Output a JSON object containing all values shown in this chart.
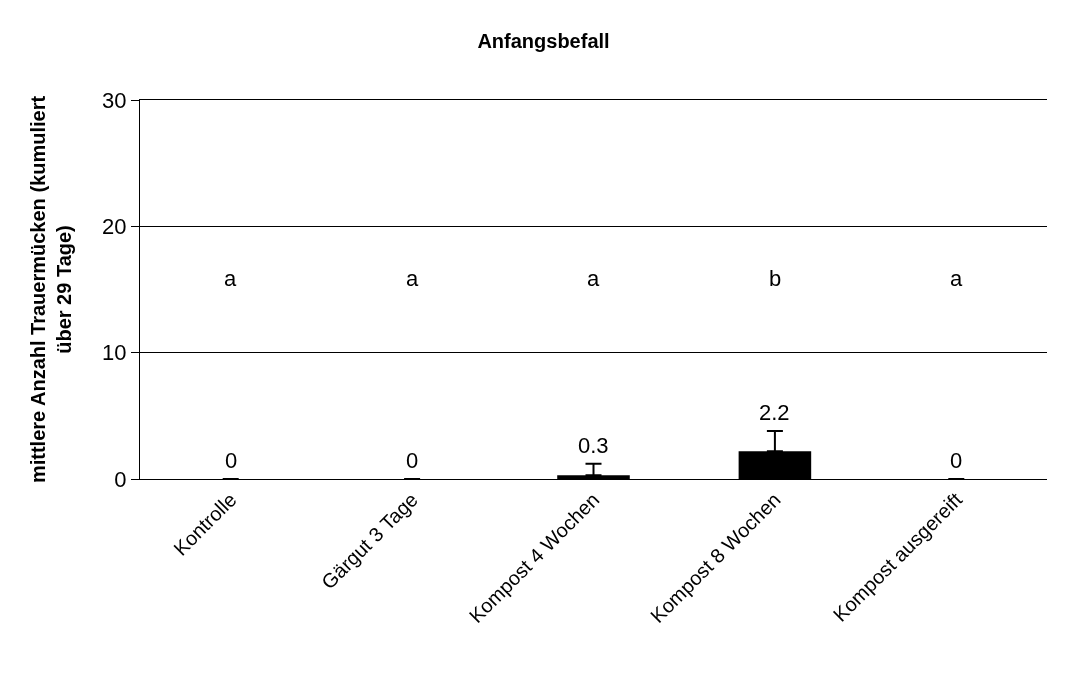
{
  "chart_data": {
    "type": "bar",
    "title": "Anfangsbefall",
    "ylabel": "mittlere Anzahl Trauermücken (kumuliert\nüber 29 Tage)",
    "categories": [
      "Kontrolle",
      "Gärgut 3 Tage",
      "Kompost 4 Wochen",
      "Kompost 8 Wochen",
      "Kompost ausgereift"
    ],
    "values": [
      0,
      0,
      0.3,
      2.2,
      0
    ],
    "color": "#000000",
    "errors": [
      null,
      null,
      [
        0.3,
        1.2
      ],
      [
        2.2,
        3.8
      ],
      null
    ],
    "data_labels": true,
    "annotations": [
      "a",
      "a",
      "a",
      "b",
      "a"
    ],
    "ylim": [
      0,
      30
    ],
    "yticks": [
      0,
      10,
      20,
      30
    ],
    "grid": "y"
  }
}
